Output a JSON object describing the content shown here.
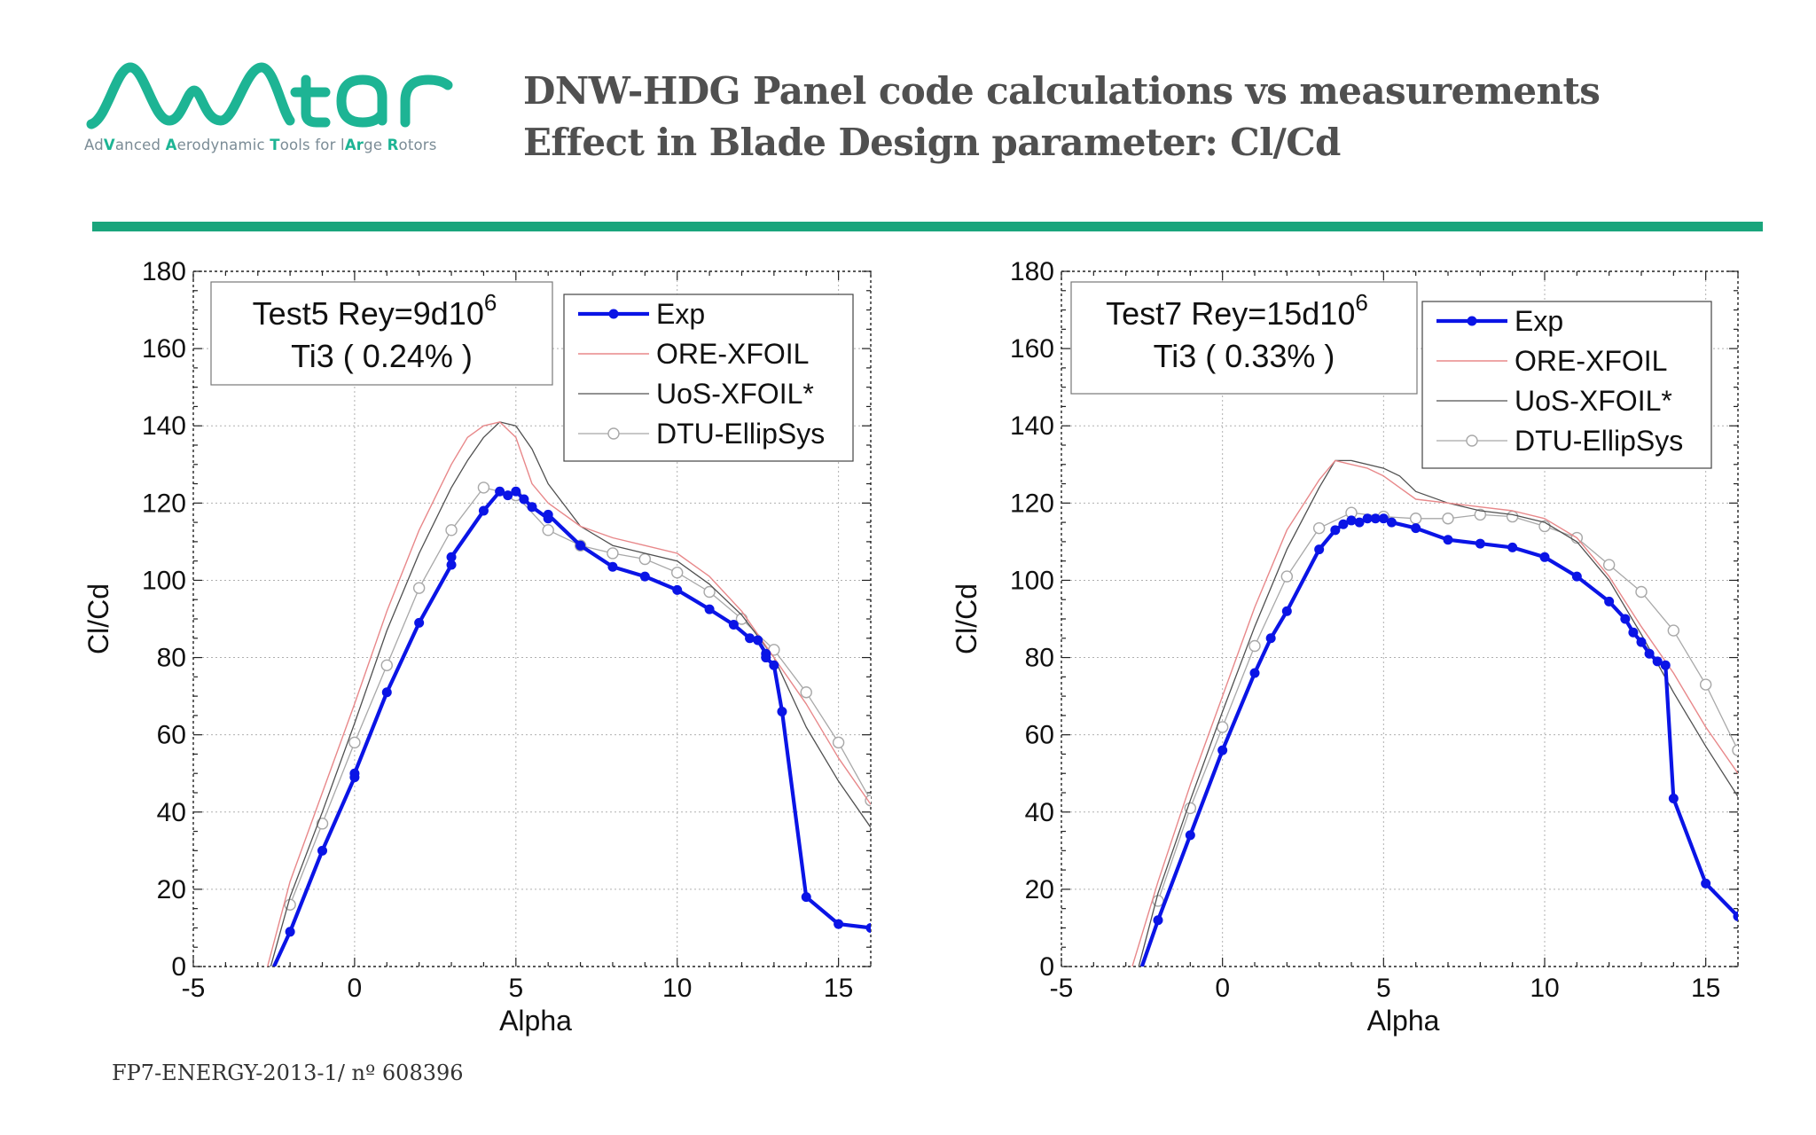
{
  "header": {
    "logo_text": "Avatar",
    "logo_tagline_parts": [
      {
        "text": "Ad",
        "hl": false
      },
      {
        "text": "V",
        "hl": true
      },
      {
        "text": "anced ",
        "hl": false
      },
      {
        "text": "A",
        "hl": true
      },
      {
        "text": "erodynamic ",
        "hl": false
      },
      {
        "text": "T",
        "hl": true
      },
      {
        "text": "ools for l",
        "hl": false
      },
      {
        "text": "Ar",
        "hl": true
      },
      {
        "text": "ge ",
        "hl": false
      },
      {
        "text": "R",
        "hl": true
      },
      {
        "text": "otors",
        "hl": false
      }
    ],
    "title_line1": "DNW-HDG Panel code calculations vs measurements",
    "title_line2": "Effect in Blade Design parameter: Cl/Cd"
  },
  "footer": {
    "text": "FP7-ENERGY-2013-1/ nº 608396"
  },
  "colors": {
    "brand_green": "#1aa57c",
    "logo_teal": "#1db494",
    "exp": "#0a14e6",
    "ore": "#e8888a",
    "uos": "#505050",
    "dtu": "#a8a8a8"
  },
  "chart_data": [
    {
      "type": "line",
      "annotation_line1": "Test5 Rey=9d10",
      "annotation_sup": "6",
      "annotation_line2": "Ti3 ( 0.24% )",
      "xlabel": "Alpha",
      "ylabel": "Cl/Cd",
      "xlim": [
        -5,
        16
      ],
      "ylim": [
        0,
        180
      ],
      "xticks": [
        -5,
        0,
        5,
        10,
        15
      ],
      "yticks": [
        0,
        20,
        40,
        60,
        80,
        100,
        120,
        140,
        160,
        180
      ],
      "grid": true,
      "legend_position": "top-right",
      "series": [
        {
          "name": "Exp",
          "style": "exp",
          "x": [
            -2.5,
            -2,
            -1,
            0,
            0,
            1,
            2,
            3,
            3,
            4,
            4.5,
            4.75,
            5,
            5.25,
            5.5,
            6,
            6,
            7,
            8,
            9,
            10,
            11,
            11.75,
            12.25,
            12.5,
            12.75,
            12.75,
            13,
            13.25,
            14,
            15,
            16
          ],
          "y": [
            0,
            9,
            30,
            49,
            50,
            71,
            89,
            104,
            106,
            118,
            123,
            122,
            123,
            121,
            119,
            116,
            117,
            109,
            103.5,
            101,
            97.5,
            92.5,
            88.5,
            85,
            84.5,
            81,
            80,
            78,
            66,
            18,
            11,
            10
          ]
        },
        {
          "name": "ORE-XFOIL",
          "style": "ore",
          "x": [
            -2.7,
            -2,
            -1,
            0,
            1,
            2,
            3,
            3.5,
            4,
            4.5,
            5,
            5.5,
            6,
            7,
            8,
            9,
            10,
            11,
            12,
            13,
            14,
            15,
            16
          ],
          "y": [
            0,
            22,
            45,
            68,
            92,
            113,
            130,
            137,
            140,
            141,
            137,
            125,
            120,
            114,
            111,
            109,
            107,
            101,
            92,
            80,
            68,
            54,
            42
          ]
        },
        {
          "name": "UoS-XFOIL*",
          "style": "uos",
          "x": [
            -2.6,
            -2,
            -1,
            0,
            1,
            2,
            3,
            3.5,
            4,
            4.5,
            5,
            5.5,
            6,
            7,
            8,
            9,
            10,
            11,
            12,
            13,
            14,
            15,
            16
          ],
          "y": [
            0,
            18,
            40,
            63,
            87,
            107,
            124,
            131,
            137,
            141,
            140,
            134,
            125,
            114,
            109,
            107,
            105,
            99,
            91,
            80,
            62,
            48,
            36
          ]
        },
        {
          "name": "DTU-EllipSys",
          "style": "dtu",
          "x": [
            -2,
            -1,
            0,
            1,
            2,
            3,
            4,
            5,
            6,
            7,
            8,
            9,
            10,
            11,
            12,
            13,
            14,
            15,
            16
          ],
          "y": [
            16,
            37,
            58,
            78,
            98,
            113,
            124,
            122,
            113,
            109,
            107,
            105.5,
            102,
            97,
            90,
            82,
            71,
            58,
            43
          ]
        }
      ]
    },
    {
      "type": "line",
      "annotation_line1": "Test7 Rey=15d10",
      "annotation_sup": "6",
      "annotation_line2": "Ti3 ( 0.33% )",
      "xlabel": "Alpha",
      "ylabel": "Cl/Cd",
      "xlim": [
        -5,
        16
      ],
      "ylim": [
        0,
        180
      ],
      "xticks": [
        -5,
        0,
        5,
        10,
        15
      ],
      "yticks": [
        0,
        20,
        40,
        60,
        80,
        100,
        120,
        140,
        160,
        180
      ],
      "grid": true,
      "legend_position": "top-right",
      "series": [
        {
          "name": "Exp",
          "style": "exp",
          "x": [
            -2.5,
            -2,
            -1,
            0,
            1,
            1.5,
            2,
            3,
            3.5,
            3.75,
            4,
            4.25,
            4.5,
            4.75,
            5,
            5.25,
            6,
            7,
            8,
            9,
            10,
            11,
            12,
            12.5,
            12.75,
            13,
            13.25,
            13.5,
            13.75,
            14,
            15,
            16
          ],
          "y": [
            0,
            12,
            34,
            56,
            76,
            85,
            92,
            108,
            113,
            114.5,
            115.5,
            115,
            116,
            116,
            116,
            115,
            113.5,
            110.5,
            109.5,
            108.5,
            106,
            101,
            94.5,
            90,
            86.5,
            84,
            81,
            79,
            78,
            43.5,
            21.5,
            13
          ]
        },
        {
          "name": "ORE-XFOIL",
          "style": "ore",
          "x": [
            -2.8,
            -2,
            -1,
            0,
            1,
            2,
            3,
            3.5,
            4,
            4.5,
            5,
            5.5,
            6,
            7,
            8,
            9,
            10,
            11,
            12,
            13,
            14,
            15,
            16
          ],
          "y": [
            0,
            22,
            47,
            70,
            93,
            113,
            126,
            131,
            130,
            129,
            127,
            124,
            121,
            120,
            119,
            118,
            116,
            111,
            101,
            88,
            76,
            62,
            50
          ]
        },
        {
          "name": "UoS-XFOIL*",
          "style": "uos",
          "x": [
            -2.6,
            -2,
            -1,
            0,
            1,
            2,
            3,
            3.5,
            4,
            4.5,
            5,
            5.5,
            6,
            7,
            8,
            9,
            10,
            11,
            12,
            13,
            14,
            15,
            16
          ],
          "y": [
            0,
            19,
            43,
            66,
            88,
            108,
            124,
            131,
            131,
            130,
            129,
            127,
            123,
            120,
            118,
            117,
            115,
            110,
            100,
            86,
            71,
            57,
            44
          ]
        },
        {
          "name": "DTU-EllipSys",
          "style": "dtu",
          "x": [
            -2,
            -1,
            0,
            1,
            2,
            3,
            4,
            5,
            6,
            7,
            8,
            9,
            10,
            11,
            12,
            13,
            14,
            15,
            16
          ],
          "y": [
            17,
            41,
            62,
            83,
            101,
            113.5,
            117.5,
            116.5,
            116,
            116,
            117,
            116.5,
            114,
            111,
            104,
            97,
            87,
            73,
            56
          ]
        }
      ]
    }
  ]
}
